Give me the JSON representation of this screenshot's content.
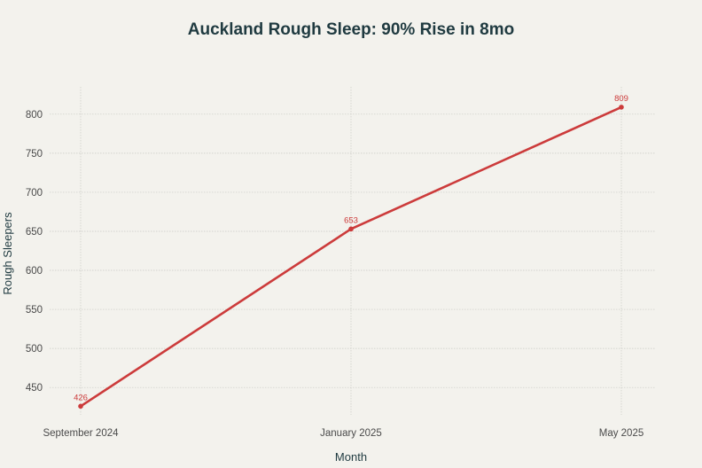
{
  "chart_data": {
    "type": "line",
    "title": "Auckland Rough Sleep: 90% Rise in 8mo",
    "xlabel": "Month",
    "ylabel": "Rough Sleepers",
    "categories": [
      "September 2024",
      "January 2025",
      "May 2025"
    ],
    "series": [
      {
        "values": [
          426,
          653,
          809
        ],
        "color": "#cc3b3b"
      }
    ],
    "data_labels": [
      "426",
      "653",
      "809"
    ],
    "yticks": [
      450,
      500,
      550,
      600,
      650,
      700,
      750,
      800
    ],
    "ylim": [
      415,
      835
    ],
    "grid": true,
    "legend": "none"
  }
}
